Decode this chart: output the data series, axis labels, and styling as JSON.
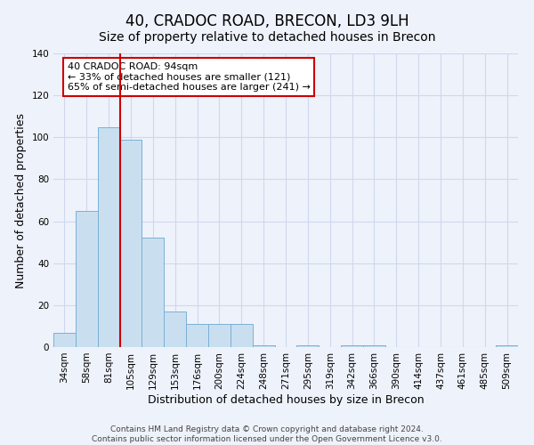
{
  "title": "40, CRADOC ROAD, BRECON, LD3 9LH",
  "subtitle": "Size of property relative to detached houses in Brecon",
  "xlabel": "Distribution of detached houses by size in Brecon",
  "ylabel": "Number of detached properties",
  "bar_labels": [
    "34sqm",
    "58sqm",
    "81sqm",
    "105sqm",
    "129sqm",
    "153sqm",
    "176sqm",
    "200sqm",
    "224sqm",
    "248sqm",
    "271sqm",
    "295sqm",
    "319sqm",
    "342sqm",
    "366sqm",
    "390sqm",
    "414sqm",
    "437sqm",
    "461sqm",
    "485sqm",
    "509sqm"
  ],
  "bar_values": [
    7,
    65,
    105,
    99,
    52,
    17,
    11,
    11,
    11,
    1,
    0,
    1,
    0,
    1,
    1,
    0,
    0,
    0,
    0,
    0,
    1
  ],
  "bar_color": "#c9dff0",
  "bar_edgecolor": "#7ab0d4",
  "vline_x": 2.5,
  "vline_color": "#cc0000",
  "annotation_text": "40 CRADOC ROAD: 94sqm\n← 33% of detached houses are smaller (121)\n65% of semi-detached houses are larger (241) →",
  "annotation_box_edgecolor": "#cc0000",
  "annotation_box_facecolor": "#ffffff",
  "ylim": [
    0,
    140
  ],
  "yticks": [
    0,
    20,
    40,
    60,
    80,
    100,
    120,
    140
  ],
  "footer_line1": "Contains HM Land Registry data © Crown copyright and database right 2024.",
  "footer_line2": "Contains public sector information licensed under the Open Government Licence v3.0.",
  "bg_color": "#eef2fb",
  "grid_color": "#d0d8ee",
  "title_fontsize": 12,
  "subtitle_fontsize": 10,
  "axis_label_fontsize": 9,
  "tick_fontsize": 7.5,
  "footer_fontsize": 6.5
}
